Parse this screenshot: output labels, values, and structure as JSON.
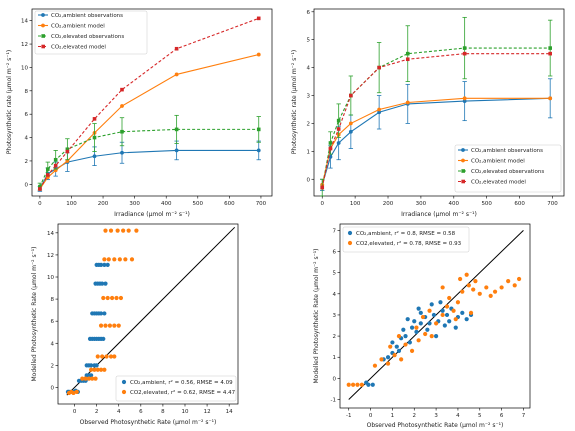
{
  "colors": {
    "ambient": "#1f77b4",
    "model_ambient": "#ff7f0e",
    "elevated": "#2ca02c",
    "model_elevated": "#d62728",
    "identity_line": "#000000"
  },
  "chart_data": [
    {
      "type": "line",
      "xlabel": "Irradiance (μmol m⁻² s⁻¹)",
      "ylabel": "Photosynthetic rate (μmol m⁻² s⁻¹)",
      "xlim": [
        -25,
        735
      ],
      "ylim": [
        -1,
        15
      ],
      "xticks": [
        0,
        100,
        200,
        300,
        400,
        500,
        600,
        700
      ],
      "yticks": [
        0,
        2,
        4,
        6,
        8,
        10,
        12,
        14
      ],
      "legend_position": "upper-left",
      "grid": false,
      "x": [
        0,
        25,
        50,
        87,
        173,
        260,
        433,
        693
      ],
      "series": [
        {
          "name": "CO₂,ambient observations",
          "color_key": "ambient",
          "style": "solid-errorbar",
          "marker": "circle",
          "values": [
            -0.4,
            0.9,
            1.3,
            1.9,
            2.4,
            2.7,
            2.9,
            2.9
          ],
          "errors": [
            0.2,
            0.5,
            0.6,
            0.8,
            0.8,
            0.9,
            0.8,
            0.8
          ]
        },
        {
          "name": "CO₂,ambient model",
          "color_key": "model_ambient",
          "style": "solid",
          "marker": "circle",
          "values": [
            -0.4,
            0.6,
            1.2,
            2.0,
            4.4,
            6.7,
            9.4,
            11.1
          ]
        },
        {
          "name": "CO₂,elevated observations",
          "color_key": "elevated",
          "style": "dashed-errorbar",
          "marker": "square",
          "values": [
            -0.2,
            1.3,
            2.1,
            3.0,
            4.0,
            4.5,
            4.7,
            4.7
          ],
          "errors": [
            0.3,
            0.6,
            0.8,
            0.9,
            1.2,
            1.2,
            1.2,
            1.1
          ]
        },
        {
          "name": "CO₂,elevated model",
          "color_key": "model_elevated",
          "style": "dashed",
          "marker": "square",
          "values": [
            -0.4,
            0.8,
            1.6,
            2.8,
            5.6,
            8.1,
            11.6,
            14.2
          ]
        }
      ]
    },
    {
      "type": "line",
      "xlabel": "Irradiance (μmol m⁻² s⁻¹)",
      "ylabel": "Photosynthetic rate (μmol m⁻² s⁻¹)",
      "xlim": [
        -25,
        735
      ],
      "ylim": [
        -0.6,
        6.1
      ],
      "xticks": [
        0,
        100,
        200,
        300,
        400,
        500,
        600,
        700
      ],
      "yticks": [
        0,
        1,
        2,
        3,
        4,
        5,
        6
      ],
      "legend_position": "lower-right",
      "grid": false,
      "x": [
        0,
        25,
        50,
        87,
        173,
        260,
        433,
        693
      ],
      "series": [
        {
          "name": "CO₂,ambient observations",
          "color_key": "ambient",
          "style": "solid-errorbar",
          "marker": "circle",
          "values": [
            -0.2,
            0.8,
            1.3,
            1.7,
            2.4,
            2.7,
            2.8,
            2.9
          ],
          "errors": [
            0.2,
            0.4,
            0.6,
            0.6,
            0.6,
            0.7,
            0.7,
            0.7
          ]
        },
        {
          "name": "CO₂,ambient model",
          "color_key": "model_ambient",
          "style": "solid",
          "marker": "circle",
          "values": [
            -0.2,
            1.1,
            1.6,
            2.0,
            2.5,
            2.75,
            2.9,
            2.9
          ]
        },
        {
          "name": "CO₂,elevated observations",
          "color_key": "elevated",
          "style": "dashed-errorbar",
          "marker": "square",
          "values": [
            -0.3,
            1.3,
            2.1,
            3.0,
            4.0,
            4.5,
            4.7,
            4.7
          ],
          "errors": [
            0.3,
            0.4,
            0.6,
            0.7,
            0.9,
            1.0,
            1.1,
            1.0
          ]
        },
        {
          "name": "CO₂,elevated model",
          "color_key": "model_elevated",
          "style": "dashed",
          "marker": "square",
          "values": [
            -0.3,
            1.1,
            1.8,
            3.0,
            4.0,
            4.3,
            4.5,
            4.5
          ]
        }
      ]
    },
    {
      "type": "scatter",
      "xlabel": "Observed Photosynthetic Rate (μmol m⁻² s⁻¹)",
      "ylabel": "Modelled Photosynthetic Rate (μmol m⁻² s⁻¹)",
      "xlim": [
        -1.5,
        14.8
      ],
      "ylim": [
        -1.5,
        14.8
      ],
      "xticks": [
        0,
        2,
        4,
        6,
        8,
        10,
        12,
        14
      ],
      "yticks": [
        0,
        2,
        4,
        6,
        8,
        10,
        12,
        14
      ],
      "legend_position": "lower-right",
      "grid": false,
      "identity_line": [
        [
          -0.7,
          -0.7
        ],
        [
          14.5,
          14.5
        ]
      ],
      "series": [
        {
          "name": "CO₂,ambient, r² = 0.56, RMSE = 4.09",
          "color_key": "ambient",
          "points": [
            [
              -0.6,
              -0.4
            ],
            [
              -0.5,
              -0.4
            ],
            [
              -0.3,
              -0.4
            ],
            [
              -0.1,
              -0.4
            ],
            [
              0.1,
              -0.3
            ],
            [
              0.3,
              -0.4
            ],
            [
              0.4,
              0.6
            ],
            [
              0.6,
              0.6
            ],
            [
              0.8,
              0.6
            ],
            [
              1.0,
              0.6
            ],
            [
              1.1,
              1.1
            ],
            [
              1.3,
              1.1
            ],
            [
              1.5,
              1.1
            ],
            [
              1.1,
              2.0
            ],
            [
              1.3,
              2.0
            ],
            [
              1.5,
              2.0
            ],
            [
              1.8,
              2.0
            ],
            [
              2.0,
              2.0
            ],
            [
              1.4,
              4.4
            ],
            [
              1.6,
              4.4
            ],
            [
              1.8,
              4.4
            ],
            [
              2.0,
              4.4
            ],
            [
              2.2,
              4.4
            ],
            [
              2.4,
              4.4
            ],
            [
              2.6,
              4.4
            ],
            [
              1.6,
              6.7
            ],
            [
              1.8,
              6.7
            ],
            [
              2.0,
              6.7
            ],
            [
              2.2,
              6.7
            ],
            [
              2.4,
              6.7
            ],
            [
              2.7,
              6.7
            ],
            [
              1.9,
              9.4
            ],
            [
              2.1,
              9.4
            ],
            [
              2.3,
              9.4
            ],
            [
              2.5,
              9.4
            ],
            [
              2.8,
              9.4
            ],
            [
              2.0,
              11.1
            ],
            [
              2.2,
              11.1
            ],
            [
              2.4,
              11.1
            ],
            [
              2.7,
              11.1
            ],
            [
              3.0,
              11.1
            ]
          ]
        },
        {
          "name": "CO2,elevated, r² = 0.62, RMSE = 4.47",
          "color_key": "model_ambient",
          "points": [
            [
              -0.5,
              -0.5
            ],
            [
              -0.3,
              -0.4
            ],
            [
              -0.1,
              -0.5
            ],
            [
              0.2,
              -0.4
            ],
            [
              0.7,
              0.8
            ],
            [
              1.0,
              0.8
            ],
            [
              1.3,
              0.8
            ],
            [
              1.6,
              0.8
            ],
            [
              1.9,
              0.8
            ],
            [
              1.5,
              1.6
            ],
            [
              1.8,
              1.6
            ],
            [
              2.1,
              1.6
            ],
            [
              2.4,
              1.6
            ],
            [
              2.7,
              1.6
            ],
            [
              2.1,
              2.8
            ],
            [
              2.5,
              2.8
            ],
            [
              2.9,
              2.8
            ],
            [
              3.3,
              2.8
            ],
            [
              3.6,
              2.8
            ],
            [
              2.4,
              5.6
            ],
            [
              2.8,
              5.6
            ],
            [
              3.2,
              5.6
            ],
            [
              3.6,
              5.6
            ],
            [
              4.0,
              5.6
            ],
            [
              2.6,
              8.1
            ],
            [
              3.0,
              8.1
            ],
            [
              3.4,
              8.1
            ],
            [
              3.8,
              8.1
            ],
            [
              4.2,
              8.1
            ],
            [
              2.7,
              11.6
            ],
            [
              3.1,
              11.6
            ],
            [
              3.6,
              11.6
            ],
            [
              4.1,
              11.6
            ],
            [
              4.6,
              11.6
            ],
            [
              5.2,
              11.6
            ],
            [
              2.8,
              14.2
            ],
            [
              3.3,
              14.2
            ],
            [
              3.9,
              14.2
            ],
            [
              4.4,
              14.2
            ],
            [
              4.9,
              14.2
            ],
            [
              5.6,
              14.2
            ]
          ]
        }
      ],
      "legend_stats": [
        {
          "label": "CO₂,ambient, r² = 0.56, RMSE = 4.09"
        },
        {
          "label": "CO2,elevated, r² = 0.62, RMSE = 4.47"
        }
      ]
    },
    {
      "type": "scatter",
      "xlabel": "Observed Photosynthetic Rate (μmol m⁻² s⁻¹)",
      "ylabel": "Modelled Photosynthetic Rate (μmol m⁻² s⁻¹)",
      "xlim": [
        -1.4,
        7.3
      ],
      "ylim": [
        -1.4,
        7.3
      ],
      "xticks": [
        -1,
        0,
        1,
        2,
        3,
        4,
        5,
        6,
        7
      ],
      "yticks": [
        -1,
        0,
        1,
        2,
        3,
        4,
        5,
        6,
        7
      ],
      "legend_position": "upper-left",
      "grid": false,
      "identity_line": [
        [
          -1,
          -1
        ],
        [
          7,
          7
        ]
      ],
      "series": [
        {
          "name": "CO₂,ambient, r² = 0.8, RMSE = 0.58",
          "color_key": "ambient",
          "points": [
            [
              -0.1,
              -0.3
            ],
            [
              -0.2,
              -0.2
            ],
            [
              0.1,
              -0.3
            ],
            [
              0.6,
              0.9
            ],
            [
              0.8,
              1.0
            ],
            [
              1.0,
              1.2
            ],
            [
              1.2,
              1.5
            ],
            [
              1.0,
              1.7
            ],
            [
              1.4,
              1.9
            ],
            [
              1.6,
              2.0
            ],
            [
              1.8,
              1.7
            ],
            [
              1.5,
              2.3
            ],
            [
              1.9,
              2.4
            ],
            [
              2.1,
              2.2
            ],
            [
              2.3,
              2.6
            ],
            [
              2.0,
              2.7
            ],
            [
              2.5,
              2.9
            ],
            [
              2.7,
              2.6
            ],
            [
              2.3,
              3.1
            ],
            [
              2.9,
              3.0
            ],
            [
              3.1,
              2.7
            ],
            [
              3.3,
              3.2
            ],
            [
              2.8,
              3.5
            ],
            [
              3.5,
              3.0
            ],
            [
              3.7,
              3.3
            ],
            [
              3.4,
              2.5
            ],
            [
              4.0,
              2.9
            ],
            [
              4.2,
              3.1
            ],
            [
              3.9,
              2.4
            ],
            [
              4.4,
              2.8
            ],
            [
              1.3,
              1.3
            ],
            [
              2.6,
              2.3
            ],
            [
              3.0,
              2.0
            ],
            [
              3.6,
              2.7
            ],
            [
              4.6,
              3.0
            ],
            [
              2.2,
              3.3
            ],
            [
              3.2,
              3.6
            ],
            [
              1.7,
              2.8
            ]
          ]
        },
        {
          "name": "CO2,elevated, r² = 0.78, RMSE = 0.93",
          "color_key": "model_ambient",
          "points": [
            [
              -1.0,
              -0.3
            ],
            [
              -0.8,
              -0.3
            ],
            [
              -0.6,
              -0.3
            ],
            [
              -0.4,
              -0.3
            ],
            [
              0.2,
              0.6
            ],
            [
              0.5,
              0.9
            ],
            [
              0.8,
              0.7
            ],
            [
              1.1,
              1.1
            ],
            [
              1.4,
              0.9
            ],
            [
              1.6,
              1.6
            ],
            [
              1.9,
              1.3
            ],
            [
              2.2,
              1.8
            ],
            [
              2.5,
              2.1
            ],
            [
              2.1,
              2.4
            ],
            [
              2.8,
              2.0
            ],
            [
              3.0,
              2.6
            ],
            [
              3.3,
              3.0
            ],
            [
              2.7,
              3.2
            ],
            [
              3.5,
              3.4
            ],
            [
              3.8,
              3.2
            ],
            [
              3.6,
              3.8
            ],
            [
              4.0,
              3.6
            ],
            [
              4.2,
              4.1
            ],
            [
              3.3,
              4.3
            ],
            [
              4.5,
              4.4
            ],
            [
              4.8,
              4.6
            ],
            [
              4.4,
              4.9
            ],
            [
              4.7,
              4.2
            ],
            [
              5.0,
              4.0
            ],
            [
              4.1,
              4.7
            ],
            [
              5.3,
              4.3
            ],
            [
              5.7,
              4.1
            ],
            [
              6.0,
              4.3
            ],
            [
              6.3,
              4.6
            ],
            [
              6.6,
              4.4
            ],
            [
              6.8,
              4.7
            ],
            [
              5.5,
              3.9
            ],
            [
              3.9,
              2.8
            ],
            [
              2.4,
              2.9
            ],
            [
              4.6,
              3.1
            ],
            [
              1.3,
              2.0
            ],
            [
              0.9,
              1.5
            ]
          ]
        }
      ],
      "legend_stats": [
        {
          "label": "CO₂,ambient, r² = 0.8, RMSE = 0.58"
        },
        {
          "label": "CO2,elevated, r² = 0.78, RMSE = 0.93"
        }
      ]
    }
  ]
}
